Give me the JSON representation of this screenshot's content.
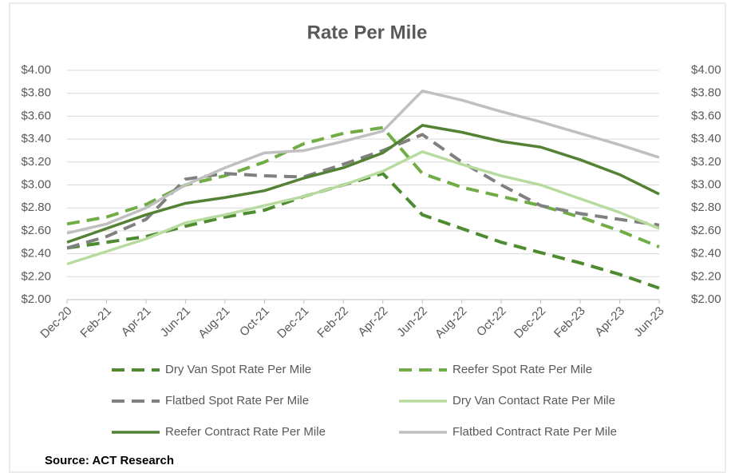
{
  "chart_data": {
    "type": "line",
    "title": "Rate Per Mile",
    "source": "Source: ACT Research",
    "categories": [
      "Dec-20",
      "Feb-21",
      "Apr-21",
      "Jun-21",
      "Aug-21",
      "Oct-21",
      "Dec-21",
      "Feb-22",
      "Apr-22",
      "Jun-22",
      "Aug-22",
      "Oct-22",
      "Dec-22",
      "Feb-23",
      "Apr-23",
      "Jun-23"
    ],
    "ylim": [
      2.0,
      4.0
    ],
    "yticks": [
      {
        "value": 2.0,
        "label": "$2.00"
      },
      {
        "value": 2.2,
        "label": "$2.20"
      },
      {
        "value": 2.4,
        "label": "$2.40"
      },
      {
        "value": 2.6,
        "label": "$2.60"
      },
      {
        "value": 2.8,
        "label": "$2.80"
      },
      {
        "value": 3.0,
        "label": "$3.00"
      },
      {
        "value": 3.2,
        "label": "$3.20"
      },
      {
        "value": 3.4,
        "label": "$3.40"
      },
      {
        "value": 3.6,
        "label": "$3.60"
      },
      {
        "value": 3.8,
        "label": "$3.80"
      },
      {
        "value": 4.0,
        "label": "$4.00"
      }
    ],
    "y2lim": [
      2.0,
      4.0
    ],
    "y2ticks": [
      {
        "value": 2.0,
        "label": "$2.00"
      },
      {
        "value": 2.2,
        "label": "$2.20"
      },
      {
        "value": 2.4,
        "label": "$2.40"
      },
      {
        "value": 2.6,
        "label": "$2.60"
      },
      {
        "value": 2.8,
        "label": "$2.80"
      },
      {
        "value": 3.0,
        "label": "$3.00"
      },
      {
        "value": 3.2,
        "label": "$3.20"
      },
      {
        "value": 3.4,
        "label": "$3.40"
      },
      {
        "value": 3.6,
        "label": "$3.60"
      },
      {
        "value": 3.8,
        "label": "$3.80"
      },
      {
        "value": 4.0,
        "label": "$4.00"
      }
    ],
    "grid": true,
    "legend": "bottom",
    "series": [
      {
        "name": "Dry Van Spot Rate Per Mile",
        "color": "#4e8a2f",
        "dashed": true,
        "values": [
          2.45,
          2.5,
          2.55,
          2.64,
          2.72,
          2.78,
          2.9,
          3.0,
          3.1,
          2.74,
          2.62,
          2.5,
          2.41,
          2.32,
          2.22,
          2.1
        ]
      },
      {
        "name": "Reefer Spot Rate Per Mile",
        "color": "#70ad47",
        "dashed": true,
        "values": [
          2.66,
          2.72,
          2.83,
          3.0,
          3.08,
          3.2,
          3.36,
          3.45,
          3.5,
          3.1,
          2.98,
          2.9,
          2.82,
          2.72,
          2.6,
          2.46
        ]
      },
      {
        "name": "Flatbed Spot Rate Per Mile",
        "color": "#808080",
        "dashed": true,
        "values": [
          2.45,
          2.55,
          2.7,
          3.05,
          3.1,
          3.08,
          3.07,
          3.18,
          3.3,
          3.44,
          3.2,
          3.0,
          2.82,
          2.75,
          2.7,
          2.65
        ]
      },
      {
        "name": "Dry Van Contact Rate Per Mile",
        "color": "#b8dba0",
        "dashed": false,
        "values": [
          2.31,
          2.42,
          2.53,
          2.67,
          2.74,
          2.82,
          2.9,
          3.0,
          3.12,
          3.29,
          3.18,
          3.08,
          3.0,
          2.88,
          2.76,
          2.62
        ]
      },
      {
        "name": "Reefer Contract Rate Per Mile",
        "color": "#548235",
        "dashed": false,
        "values": [
          2.5,
          2.62,
          2.74,
          2.84,
          2.89,
          2.95,
          3.06,
          3.15,
          3.28,
          3.52,
          3.46,
          3.38,
          3.33,
          3.22,
          3.09,
          2.92
        ]
      },
      {
        "name": "Flatbed Contract Rate Per Mile",
        "color": "#c0c0c0",
        "dashed": false,
        "values": [
          2.58,
          2.66,
          2.8,
          3.0,
          3.15,
          3.28,
          3.3,
          3.38,
          3.47,
          3.82,
          3.74,
          3.64,
          3.55,
          3.45,
          3.35,
          3.24
        ]
      }
    ]
  }
}
